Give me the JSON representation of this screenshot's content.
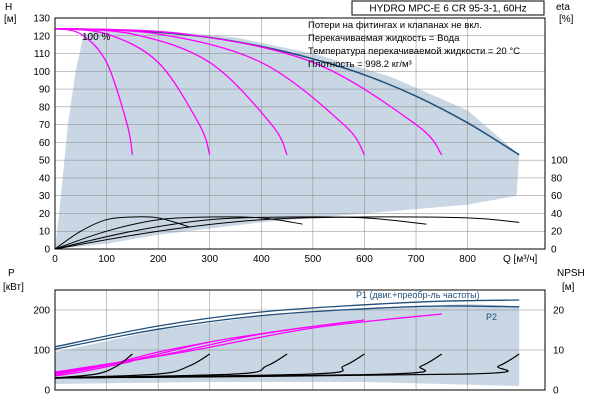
{
  "colors": {
    "envelope_fill": "#c9d6e3",
    "grid": "#888888",
    "speed_curve": "#ff00ff",
    "pump_curve": "#1f4e79",
    "black_curve": "#000000"
  },
  "chart_data": [
    {
      "id": "hq",
      "type": "line",
      "title": "HYDRO MPC-E 6 CR 95-3-1, 60Hz",
      "notes": [
        "Потери на фитингах и клапанах не вкл.",
        "Перекачиваемая жидкость = Вода",
        "Температура перекачиваемой жидкости = 20 °C",
        "Плотность = 998.2 кг/м³"
      ],
      "annotation": "100 %",
      "xlabel": "Q [м³/ч]",
      "ylabel": [
        "H",
        "[м]"
      ],
      "ylabel_right": [
        "eta",
        "[%]"
      ],
      "xlim": [
        0,
        950
      ],
      "ylim": [
        0,
        130
      ],
      "x_ticks": [
        0,
        100,
        200,
        300,
        400,
        500,
        600,
        700,
        800
      ],
      "y_ticks": [
        0,
        10,
        20,
        30,
        40,
        50,
        60,
        70,
        80,
        90,
        100,
        110,
        120,
        130
      ],
      "y2_ticks": [
        0,
        20,
        40,
        60,
        80,
        100
      ],
      "grid": true,
      "envelope": [
        [
          0,
          0
        ],
        [
          8,
          20
        ],
        [
          15,
          40
        ],
        [
          25,
          70
        ],
        [
          40,
          100
        ],
        [
          55,
          120
        ],
        [
          80,
          124
        ],
        [
          200,
          123
        ],
        [
          350,
          119
        ],
        [
          500,
          110
        ],
        [
          650,
          97
        ],
        [
          800,
          78
        ],
        [
          900,
          53
        ],
        [
          895,
          30
        ],
        [
          800,
          25
        ],
        [
          600,
          20
        ],
        [
          400,
          15
        ],
        [
          200,
          8
        ],
        [
          100,
          3
        ],
        [
          0,
          0
        ]
      ],
      "full_speed_curve": [
        [
          0,
          124
        ],
        [
          100,
          123.5
        ],
        [
          200,
          122
        ],
        [
          300,
          119
        ],
        [
          400,
          114
        ],
        [
          500,
          107
        ],
        [
          600,
          98
        ],
        [
          700,
          86
        ],
        [
          800,
          71
        ],
        [
          900,
          53
        ]
      ],
      "speed_curves": [
        {
          "pumps": 1,
          "points": [
            [
              0,
              124
            ],
            [
              50,
              121
            ],
            [
              100,
              105
            ],
            [
              140,
              70
            ],
            [
              150,
              53
            ]
          ]
        },
        {
          "pumps": 2,
          "points": [
            [
              0,
              124
            ],
            [
              100,
              121
            ],
            [
              200,
              105
            ],
            [
              280,
              70
            ],
            [
              300,
              53
            ]
          ]
        },
        {
          "pumps": 3,
          "points": [
            [
              0,
              124
            ],
            [
              150,
              121
            ],
            [
              300,
              105
            ],
            [
              420,
              70
            ],
            [
              450,
              53
            ]
          ]
        },
        {
          "pumps": 4,
          "points": [
            [
              0,
              124
            ],
            [
              200,
              121
            ],
            [
              400,
              105
            ],
            [
              560,
              70
            ],
            [
              600,
              53
            ]
          ]
        },
        {
          "pumps": 5,
          "points": [
            [
              0,
              124
            ],
            [
              250,
              121
            ],
            [
              500,
              105
            ],
            [
              700,
              70
            ],
            [
              750,
              53
            ]
          ]
        }
      ],
      "efficiency_curves": [
        {
          "pumps": 1,
          "points": [
            [
              0,
              0
            ],
            [
              50,
              20
            ],
            [
              100,
              33
            ],
            [
              150,
              36
            ],
            [
              200,
              35
            ],
            [
              260,
              25
            ]
          ]
        },
        {
          "pumps": 2,
          "points": [
            [
              0,
              0
            ],
            [
              100,
              20
            ],
            [
              200,
              33
            ],
            [
              300,
              36
            ],
            [
              400,
              35
            ],
            [
              480,
              28
            ]
          ]
        },
        {
          "pumps": 3,
          "points": [
            [
              0,
              0
            ],
            [
              150,
              20
            ],
            [
              300,
              33
            ],
            [
              450,
              36
            ],
            [
              600,
              35
            ],
            [
              720,
              28
            ]
          ]
        },
        {
          "pumps": 4,
          "points": [
            [
              0,
              0
            ],
            [
              200,
              20
            ],
            [
              400,
              33
            ],
            [
              600,
              36
            ],
            [
              800,
              35
            ],
            [
              900,
              30
            ]
          ]
        }
      ]
    },
    {
      "id": "power",
      "type": "line",
      "xlim": [
        0,
        950
      ],
      "ylim": [
        0,
        250
      ],
      "y_ticks": [
        0,
        100,
        200
      ],
      "y2lim": [
        0,
        25
      ],
      "y2_ticks": [
        0,
        10,
        20
      ],
      "ylabel": [
        "P",
        "[кВт]"
      ],
      "ylabel_right": [
        "NPSH",
        "[м]"
      ],
      "grid": true,
      "envelope": [
        [
          0,
          95
        ],
        [
          200,
          150
        ],
        [
          400,
          185
        ],
        [
          600,
          205
        ],
        [
          800,
          215
        ],
        [
          900,
          210
        ],
        [
          900,
          10
        ],
        [
          600,
          20
        ],
        [
          300,
          20
        ],
        [
          0,
          15
        ]
      ],
      "series": [
        {
          "name": "P1 (двиг.+преобр-ль частоты)",
          "points": [
            [
              0,
              108
            ],
            [
              200,
              160
            ],
            [
              400,
              195
            ],
            [
              600,
              213
            ],
            [
              750,
              222
            ],
            [
              900,
              225
            ]
          ]
        },
        {
          "name": "P2",
          "points": [
            [
              0,
              102
            ],
            [
              200,
              152
            ],
            [
              400,
              186
            ],
            [
              600,
              203
            ],
            [
              750,
              210
            ],
            [
              900,
              208
            ]
          ]
        }
      ],
      "speed_curves": [
        {
          "pumps": 1,
          "points": [
            [
              0,
              35
            ],
            [
              50,
              45
            ],
            [
              100,
              58
            ],
            [
              150,
              72
            ]
          ]
        },
        {
          "pumps": 2,
          "points": [
            [
              0,
              38
            ],
            [
              100,
              62
            ],
            [
              200,
              95
            ],
            [
              300,
              120
            ]
          ]
        },
        {
          "pumps": 3,
          "points": [
            [
              0,
              40
            ],
            [
              150,
              75
            ],
            [
              300,
              120
            ],
            [
              450,
              150
            ]
          ]
        },
        {
          "pumps": 4,
          "points": [
            [
              0,
              42
            ],
            [
              200,
              85
            ],
            [
              400,
              140
            ],
            [
              600,
              175
            ]
          ]
        },
        {
          "pumps": 5,
          "points": [
            [
              0,
              45
            ],
            [
              250,
              95
            ],
            [
              500,
              155
            ],
            [
              750,
              190
            ]
          ]
        }
      ],
      "npsh_curves": [
        {
          "pumps": 1,
          "points": [
            [
              0,
              3
            ],
            [
              80,
              4
            ],
            [
              120,
              6
            ],
            [
              150,
              9
            ]
          ]
        },
        {
          "pumps": 2,
          "points": [
            [
              0,
              3
            ],
            [
              200,
              4
            ],
            [
              260,
              6
            ],
            [
              300,
              9
            ]
          ]
        },
        {
          "pumps": 3,
          "points": [
            [
              0,
              3
            ],
            [
              350,
              4
            ],
            [
              410,
              6
            ],
            [
              450,
              9
            ]
          ]
        },
        {
          "pumps": 4,
          "points": [
            [
              0,
              3
            ],
            [
              500,
              4
            ],
            [
              560,
              6
            ],
            [
              600,
              9
            ]
          ]
        },
        {
          "pumps": 5,
          "points": [
            [
              0,
              3
            ],
            [
              650,
              4
            ],
            [
              710,
              6
            ],
            [
              750,
              9
            ]
          ]
        },
        {
          "pumps": 6,
          "points": [
            [
              0,
              3
            ],
            [
              800,
              4
            ],
            [
              860,
              6
            ],
            [
              900,
              9
            ]
          ]
        }
      ]
    }
  ]
}
